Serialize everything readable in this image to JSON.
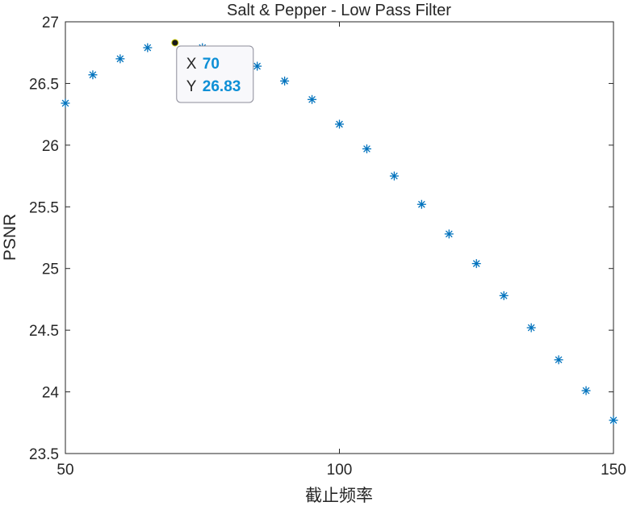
{
  "chart_data": {
    "type": "scatter",
    "title": "Salt & Pepper - Low Pass Filter",
    "xlabel": "截止频率",
    "ylabel": "PSNR",
    "xlim": [
      50,
      150
    ],
    "ylim": [
      23.5,
      27
    ],
    "xticks": [
      50,
      100,
      150
    ],
    "yticks": [
      23.5,
      24,
      24.5,
      25,
      25.5,
      26,
      26.5,
      27
    ],
    "grid": false,
    "marker": "asterisk",
    "color": "#0072BD",
    "series": [
      {
        "x": [
          50,
          55,
          60,
          65,
          70,
          75,
          80,
          85,
          90,
          95,
          100,
          105,
          110,
          115,
          120,
          125,
          130,
          135,
          140,
          145,
          150
        ],
        "y": [
          26.34,
          26.57,
          26.7,
          26.79,
          26.83,
          26.79,
          26.74,
          26.64,
          26.52,
          26.37,
          26.17,
          25.97,
          25.75,
          25.52,
          25.28,
          25.04,
          24.78,
          24.52,
          24.26,
          24.01,
          23.77
        ]
      }
    ],
    "datatip": {
      "x_label": "X",
      "y_label": "Y",
      "x": "70",
      "y": "26.83",
      "index": 4
    }
  }
}
